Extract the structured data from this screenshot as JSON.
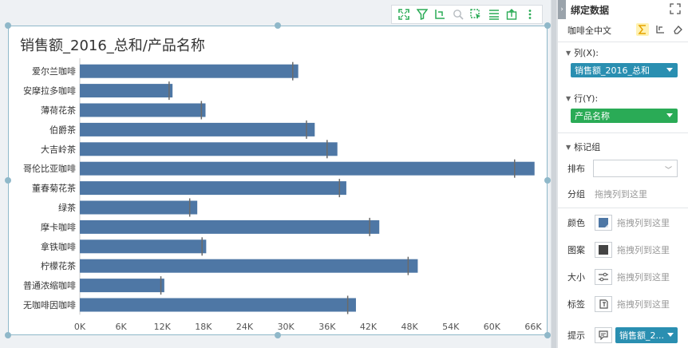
{
  "chart": {
    "title": "销售额_2016_总和/产品名称"
  },
  "chart_data": {
    "type": "bar",
    "orientation": "horizontal",
    "title": "销售额_2016_总和/产品名称",
    "categories": [
      "爱尔兰咖啡",
      "安摩拉多咖啡",
      "薄荷花茶",
      "伯爵茶",
      "大吉岭茶",
      "哥伦比亚咖啡",
      "董春菊花茶",
      "绿茶",
      "摩卡咖啡",
      "拿铁咖啡",
      "柠檬花茶",
      "普通浓缩咖啡",
      "无咖啡因咖啡"
    ],
    "values": [
      31800,
      13500,
      18300,
      34200,
      37500,
      66200,
      38800,
      17100,
      43600,
      18400,
      49200,
      12300,
      40200
    ],
    "reference_marks": [
      31000,
      13000,
      17700,
      33000,
      36000,
      63300,
      37800,
      16000,
      42200,
      17800,
      47800,
      11800,
      39000
    ],
    "x_ticks": [
      "0K",
      "6K",
      "12K",
      "18K",
      "24K",
      "30K",
      "36K",
      "42K",
      "48K",
      "54K",
      "60K",
      "66K"
    ],
    "xlim": [
      0,
      66000
    ],
    "bar_color": "#4e77a5",
    "reference_color": "#6b6b6b",
    "grid": false,
    "legend": "none"
  },
  "toolbar": {
    "icons": [
      "expand-icon",
      "filter-icon",
      "drill-icon",
      "zoom-icon",
      "select-icon",
      "list-icon",
      "export-icon",
      "more-icon"
    ],
    "accent": "#2aab56"
  },
  "panel": {
    "title": "绑定数据",
    "dataset": "咖啡全中文",
    "columns_label": "列(X):",
    "column_field": "销售额_2016_总和",
    "rows_label": "行(Y):",
    "row_field": "产品名称",
    "mark_group_label": "标记组",
    "layout_label": "排布",
    "group_label": "分组",
    "group_placeholder": "拖拽列到这里",
    "color_label": "颜色",
    "color_placeholder": "拖拽列到这里",
    "pattern_label": "图案",
    "pattern_placeholder": "拖拽列到这里",
    "size_label": "大小",
    "size_placeholder": "拖拽列到这里",
    "label_label": "标签",
    "label_placeholder": "拖拽列到这里",
    "tooltip_label": "提示",
    "tooltip_field": "销售额_2...",
    "colors": {
      "column_pill": "#2a8fb1",
      "row_pill": "#2aab56",
      "color_swatch": "#4e77a5",
      "pattern_swatch": "#444444"
    }
  }
}
